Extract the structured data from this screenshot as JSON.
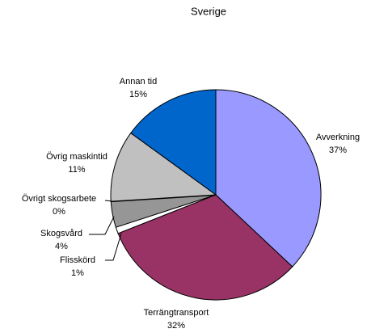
{
  "chart_data": {
    "type": "pie",
    "title": "Sverige",
    "categories": [
      "Avverkning",
      "Terrängtransport",
      "Flisskörd",
      "Skogsvård",
      "Övrigt skogsarbete",
      "Övrig maskintid",
      "Annan tid"
    ],
    "values": [
      37,
      32,
      1,
      4,
      0,
      11,
      15
    ],
    "value_labels": [
      "37%",
      "32%",
      "1%",
      "4%",
      "0%",
      "11%",
      "15%"
    ],
    "colors": [
      "#9999ff",
      "#993366",
      "#ffffff",
      "#969696",
      "#333333",
      "#c0c0c0",
      "#0066cc"
    ]
  }
}
